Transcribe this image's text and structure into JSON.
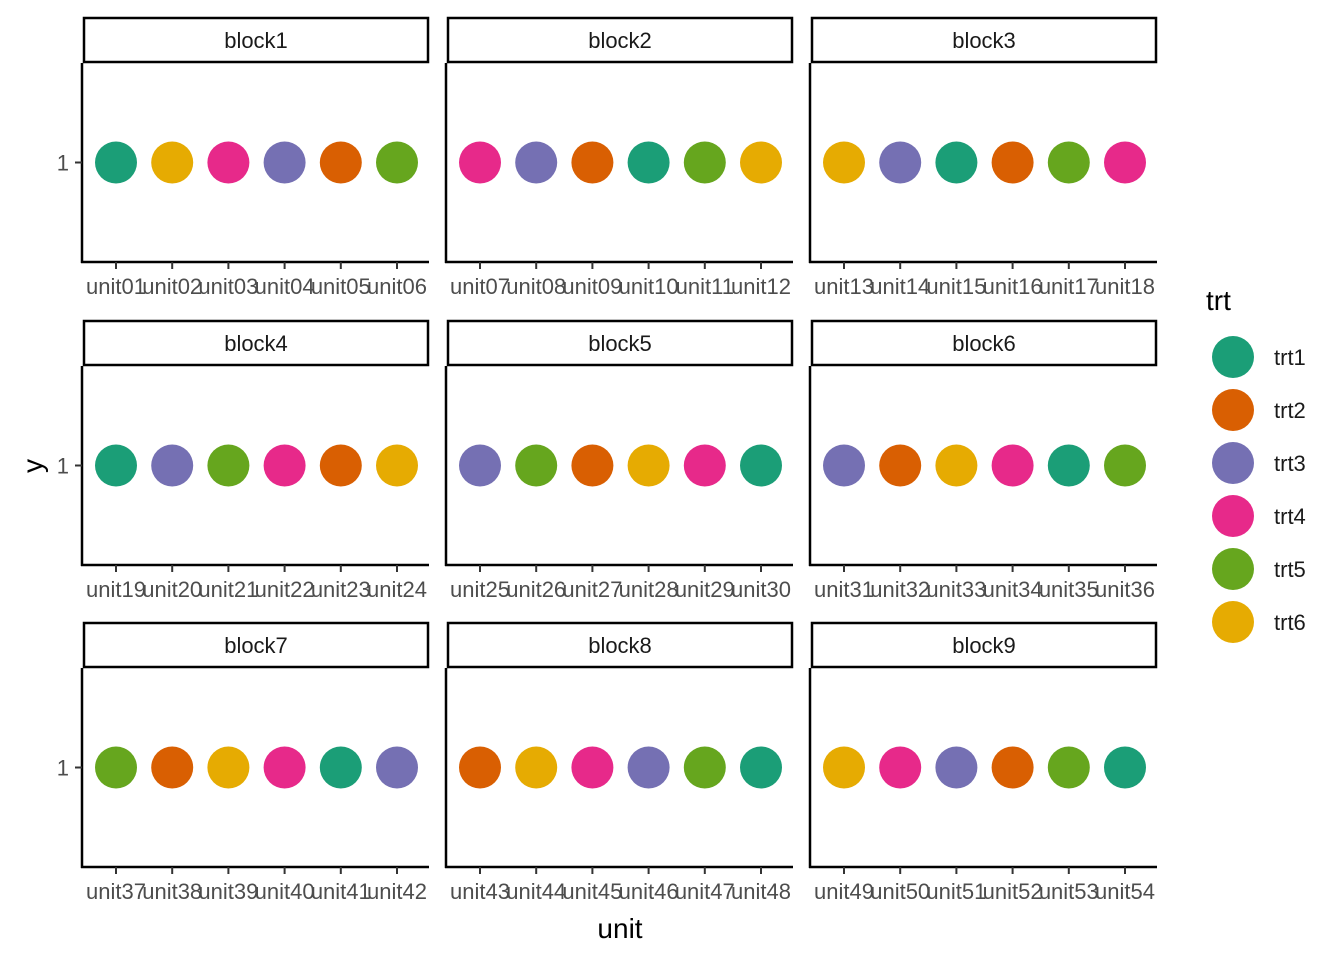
{
  "chart_data": {
    "type": "scatter",
    "xlabel": "unit",
    "ylabel": "y",
    "y_ticks": [
      "1"
    ],
    "facet_grid": "3x3",
    "grid": false,
    "legend": {
      "title": "trt",
      "position": "right",
      "entries": [
        {
          "label": "trt1",
          "color": "#1B9E77"
        },
        {
          "label": "trt2",
          "color": "#D95F02"
        },
        {
          "label": "trt3",
          "color": "#7570B3"
        },
        {
          "label": "trt4",
          "color": "#E7298A"
        },
        {
          "label": "trt5",
          "color": "#66A61E"
        },
        {
          "label": "trt6",
          "color": "#E6AB02"
        }
      ]
    },
    "panels": [
      {
        "block": "block1",
        "units": [
          "unit01",
          "unit02",
          "unit03",
          "unit04",
          "unit05",
          "unit06"
        ],
        "trt": [
          "trt1",
          "trt6",
          "trt4",
          "trt3",
          "trt2",
          "trt5"
        ],
        "y": [
          1,
          1,
          1,
          1,
          1,
          1
        ]
      },
      {
        "block": "block2",
        "units": [
          "unit07",
          "unit08",
          "unit09",
          "unit10",
          "unit11",
          "unit12"
        ],
        "trt": [
          "trt4",
          "trt3",
          "trt2",
          "trt1",
          "trt5",
          "trt6"
        ],
        "y": [
          1,
          1,
          1,
          1,
          1,
          1
        ]
      },
      {
        "block": "block3",
        "units": [
          "unit13",
          "unit14",
          "unit15",
          "unit16",
          "unit17",
          "unit18"
        ],
        "trt": [
          "trt6",
          "trt3",
          "trt1",
          "trt2",
          "trt5",
          "trt4"
        ],
        "y": [
          1,
          1,
          1,
          1,
          1,
          1
        ]
      },
      {
        "block": "block4",
        "units": [
          "unit19",
          "unit20",
          "unit21",
          "unit22",
          "unit23",
          "unit24"
        ],
        "trt": [
          "trt1",
          "trt3",
          "trt5",
          "trt4",
          "trt2",
          "trt6"
        ],
        "y": [
          1,
          1,
          1,
          1,
          1,
          1
        ]
      },
      {
        "block": "block5",
        "units": [
          "unit25",
          "unit26",
          "unit27",
          "unit28",
          "unit29",
          "unit30"
        ],
        "trt": [
          "trt3",
          "trt5",
          "trt2",
          "trt6",
          "trt4",
          "trt1"
        ],
        "y": [
          1,
          1,
          1,
          1,
          1,
          1
        ]
      },
      {
        "block": "block6",
        "units": [
          "unit31",
          "unit32",
          "unit33",
          "unit34",
          "unit35",
          "unit36"
        ],
        "trt": [
          "trt3",
          "trt2",
          "trt6",
          "trt4",
          "trt1",
          "trt5"
        ],
        "y": [
          1,
          1,
          1,
          1,
          1,
          1
        ]
      },
      {
        "block": "block7",
        "units": [
          "unit37",
          "unit38",
          "unit39",
          "unit40",
          "unit41",
          "unit42"
        ],
        "trt": [
          "trt5",
          "trt2",
          "trt6",
          "trt4",
          "trt1",
          "trt3"
        ],
        "y": [
          1,
          1,
          1,
          1,
          1,
          1
        ]
      },
      {
        "block": "block8",
        "units": [
          "unit43",
          "unit44",
          "unit45",
          "unit46",
          "unit47",
          "unit48"
        ],
        "trt": [
          "trt2",
          "trt6",
          "trt4",
          "trt3",
          "trt5",
          "trt1"
        ],
        "y": [
          1,
          1,
          1,
          1,
          1,
          1
        ]
      },
      {
        "block": "block9",
        "units": [
          "unit49",
          "unit50",
          "unit51",
          "unit52",
          "unit53",
          "unit54"
        ],
        "trt": [
          "trt6",
          "trt4",
          "trt3",
          "trt2",
          "trt5",
          "trt1"
        ],
        "y": [
          1,
          1,
          1,
          1,
          1,
          1
        ]
      }
    ]
  }
}
